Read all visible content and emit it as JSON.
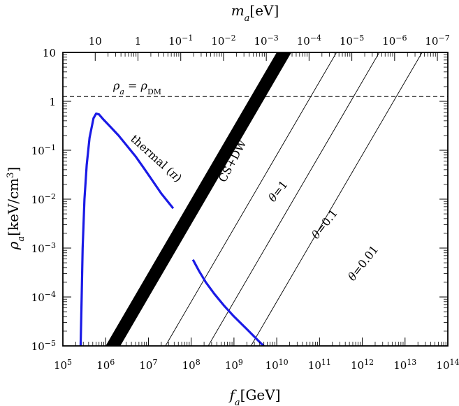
{
  "chart_data": {
    "type": "line",
    "x_scale": "log",
    "y_scale": "log",
    "xlim": [
      100000.0,
      100000000000000.0
    ],
    "ylim": [
      1e-05,
      10
    ],
    "x_tick_labels": [
      {
        "base": "10",
        "exp": "5"
      },
      {
        "base": "10",
        "exp": "6"
      },
      {
        "base": "10",
        "exp": "7"
      },
      {
        "base": "10",
        "exp": "8"
      },
      {
        "base": "10",
        "exp": "9"
      },
      {
        "base": "10",
        "exp": "10"
      },
      {
        "base": "10",
        "exp": "11"
      },
      {
        "base": "10",
        "exp": "12"
      },
      {
        "base": "10",
        "exp": "13"
      },
      {
        "base": "10",
        "exp": "14"
      }
    ],
    "x_tick_values": [
      100000.0,
      1000000.0,
      10000000.0,
      100000000.0,
      1000000000.0,
      10000000000.0,
      100000000000.0,
      1000000000000.0,
      10000000000000.0,
      100000000000000.0
    ],
    "y_tick_labels": [
      {
        "base": "10",
        "exp": "−5"
      },
      {
        "base": "10",
        "exp": "−4"
      },
      {
        "base": "10",
        "exp": "−3"
      },
      {
        "base": "10",
        "exp": "−2"
      },
      {
        "base": "10",
        "exp": "−1"
      },
      {
        "base": "1",
        "exp": ""
      },
      {
        "base": "10",
        "exp": ""
      }
    ],
    "y_tick_values": [
      1e-05,
      0.0001,
      0.001,
      0.01,
      0.1,
      1,
      10
    ],
    "top_tick_labels": [
      {
        "base": "10",
        "exp": ""
      },
      {
        "base": "1",
        "exp": ""
      },
      {
        "base": "10",
        "exp": "−1"
      },
      {
        "base": "10",
        "exp": "−2"
      },
      {
        "base": "10",
        "exp": "−3"
      },
      {
        "base": "10",
        "exp": "−4"
      },
      {
        "base": "10",
        "exp": "−5"
      },
      {
        "base": "10",
        "exp": "−6"
      },
      {
        "base": "10",
        "exp": "−7"
      }
    ],
    "top_tick_fa_values": [
      570000.0,
      5700000.0,
      57000000.0,
      570000000.0,
      5700000000.0,
      57000000000.0,
      570000000000.0,
      5700000000000.0,
      57000000000000.0
    ],
    "xlabel": {
      "main": "f",
      "sub": "a",
      "unit": "[GeV]"
    },
    "ylabel": {
      "main": "ρ",
      "sub": "a",
      "unit": "[keV/cm",
      "sup": "3",
      "close": "]"
    },
    "toplabel": {
      "main": "m",
      "sub": "a",
      "unit": "[eV]"
    },
    "series": [
      {
        "label": "thermal (π)",
        "color": "#1a1ae6",
        "x": [
          260000.0,
          275000.0,
          290000.0,
          320000.0,
          360000.0,
          420000.0,
          520000.0,
          600000.0,
          700000.0,
          900000.0,
          1300000.0,
          2000000.0,
          3000000.0,
          5000000.0,
          8000000.0,
          12000000.0,
          20000000.0,
          38000000.0
        ],
        "y": [
          1e-05,
          0.0001,
          0.001,
          0.01,
          0.05,
          0.18,
          0.45,
          0.56,
          0.54,
          0.42,
          0.3,
          0.2,
          0.13,
          0.075,
          0.042,
          0.025,
          0.013,
          0.0065
        ]
      },
      {
        "label": "",
        "color": "#1a1ae6",
        "x": [
          110000000.0,
          150000000.0,
          220000000.0,
          350000000.0,
          600000000.0,
          1000000000.0,
          2000000000.0,
          4000000000.0,
          7500000000.0
        ],
        "y": [
          0.00058,
          0.00035,
          0.0002,
          0.000115,
          6.5e-05,
          4e-05,
          2.2e-05,
          1.2e-05,
          7e-06
        ]
      }
    ],
    "band": {
      "label": "CS+DW",
      "color": "#000000",
      "lower": [
        [
          2200000.0,
          1e-05
        ],
        [
          22000000000.0,
          10
        ]
      ],
      "upper": [
        [
          1000000.0,
          1e-05
        ],
        [
          10000000000.0,
          10
        ]
      ]
    },
    "thin_lines": [
      {
        "label": "θ=1",
        "points": [
          [
            25000000.0,
            1e-05
          ],
          [
            250000000000.0,
            10
          ]
        ]
      },
      {
        "label": "θ=0.1",
        "points": [
          [
            250000000.0,
            1e-05
          ],
          [
            2500000000000.0,
            10
          ]
        ]
      },
      {
        "label": "θ=0.01",
        "points": [
          [
            2500000000.0,
            1e-05
          ],
          [
            25000000000000.0,
            10
          ]
        ]
      }
    ],
    "dm_line": {
      "y": 1.25,
      "label": {
        "left": "ρ",
        "left_sub": "a",
        "eq": " = ",
        "right": "ρ",
        "right_sub": "DM"
      }
    }
  }
}
